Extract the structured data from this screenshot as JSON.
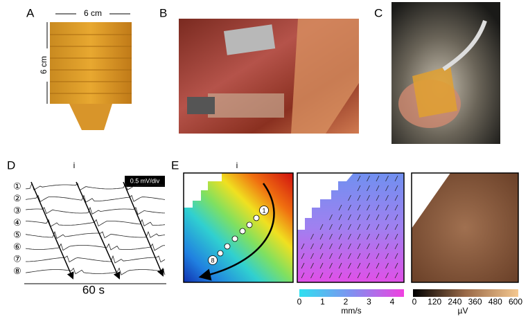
{
  "panel_a": {
    "label": "A",
    "width_label": "6 cm",
    "height_label": "6 cm"
  },
  "panel_b": {
    "label": "B"
  },
  "panel_c": {
    "label": "C"
  },
  "panel_d": {
    "label": "D",
    "title": "i",
    "scale": "0.5 mV/div",
    "channels": [
      "①",
      "②",
      "③",
      "④",
      "⑤",
      "⑥",
      "⑦",
      "⑧"
    ],
    "time_label": "60 s"
  },
  "panel_e": {
    "label": "E",
    "title": "i",
    "markers": [
      "1",
      "8"
    ],
    "velocity_colorbar": {
      "ticks": [
        0,
        1,
        2,
        3,
        4
      ],
      "unit": "mm/s"
    },
    "voltage_colorbar": {
      "ticks": [
        0,
        120,
        240,
        360,
        480,
        600
      ],
      "unit": "µV"
    }
  }
}
